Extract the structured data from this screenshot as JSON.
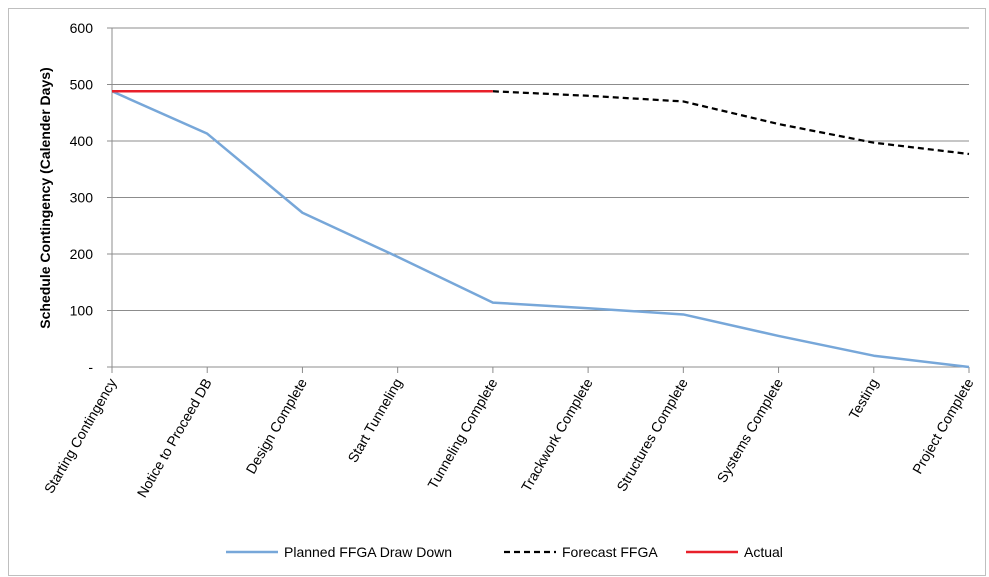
{
  "chart_data": {
    "type": "line",
    "title": "",
    "xlabel": "",
    "ylabel": "Schedule Contingency (Calender Days)",
    "ylim": [
      0,
      600
    ],
    "yticks": [
      0,
      100,
      200,
      300,
      400,
      500,
      600
    ],
    "ytick_labels": [
      "-",
      "100",
      "200",
      "300",
      "400",
      "500",
      "600"
    ],
    "grid": "horizontal",
    "legend_position": "bottom",
    "categories": [
      "Starting Contingency",
      "Notice to Proceed DB",
      "Design Complete",
      "Start Tunneling",
      "Tunneling Complete",
      "Trackwork Complete",
      "Structures Complete",
      "Systems Complete",
      "Testing",
      "Project Complete"
    ],
    "series": [
      {
        "name": "Planned FFGA Draw Down",
        "color": "#77a7d9",
        "style": "solid",
        "values": [
          488,
          413,
          273,
          195,
          114,
          104,
          93,
          55,
          20,
          0
        ]
      },
      {
        "name": "Forecast FFGA",
        "color": "#000000",
        "style": "dashed",
        "values": [
          null,
          null,
          null,
          null,
          488,
          480,
          470,
          430,
          397,
          377
        ]
      },
      {
        "name": "Actual",
        "color": "#e8202a",
        "style": "solid",
        "values": [
          488,
          488,
          488,
          488,
          488,
          null,
          null,
          null,
          null,
          null
        ]
      }
    ]
  }
}
